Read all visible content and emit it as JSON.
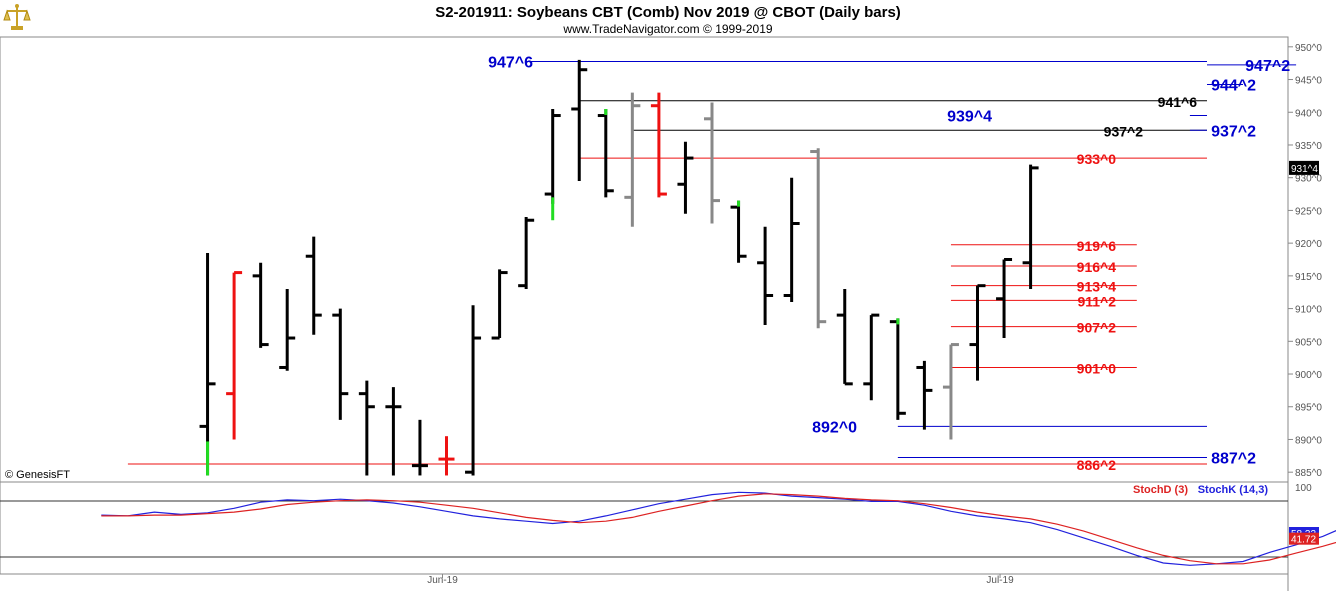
{
  "header": {
    "title": "S2-201911:  Soybeans CBT (Comb) Nov 2019 @ CBOT  (Daily bars)",
    "subtitle": "www.TradeNavigator.com © 1999-2019",
    "copyright": "© GenesisFT"
  },
  "colors": {
    "up": "#22dd22",
    "down": "#ee1111",
    "normal": "#000000",
    "gray": "#888888",
    "blue": "#0000cc",
    "red": "#dd0000",
    "stochK": "#2222dd",
    "stochD": "#dd2222"
  },
  "chart_data": [
    {
      "type": "ohlc",
      "title": "S2-201911:  Soybeans CBT (Comb) Nov 2019 @ CBOT  (Daily bars)",
      "yticks": [
        "950^0",
        "945^0",
        "940^0",
        "935^0",
        "930^0",
        "925^0",
        "920^0",
        "915^0",
        "910^0",
        "905^0",
        "900^0",
        "895^0",
        "890^0",
        "885^0"
      ],
      "ylim": [
        883.5,
        951.5
      ],
      "xticks": [
        {
          "label": "Jun-19",
          "x": 10
        },
        {
          "label": "Jul-19",
          "x": 31
        }
      ],
      "last_price_label": "931^4",
      "bars": [
        {
          "x": 1,
          "o": 892,
          "h": 918.5,
          "l": 884.5,
          "c": 898.5,
          "col": "black",
          "tick": "green"
        },
        {
          "x": 2,
          "o": 897,
          "h": 915.5,
          "l": 890,
          "c": 915.5,
          "col": "red"
        },
        {
          "x": 3,
          "o": 915,
          "h": 917,
          "l": 904,
          "c": 904.5,
          "col": "black"
        },
        {
          "x": 4,
          "o": 901,
          "h": 913,
          "l": 900.5,
          "c": 905.5,
          "col": "black"
        },
        {
          "x": 5,
          "o": 918,
          "h": 921,
          "l": 906,
          "c": 909,
          "col": "black"
        },
        {
          "x": 6,
          "o": 909,
          "h": 910,
          "l": 893,
          "c": 897,
          "col": "black"
        },
        {
          "x": 7,
          "o": 897,
          "h": 899,
          "l": 884.5,
          "c": 895,
          "col": "black"
        },
        {
          "x": 8,
          "o": 895,
          "h": 898,
          "l": 884.5,
          "c": 895,
          "col": "black"
        },
        {
          "x": 9,
          "o": 886,
          "h": 893,
          "l": 884.5,
          "c": 886,
          "col": "black"
        },
        {
          "x": 10,
          "o": 887,
          "h": 890.5,
          "l": 884.5,
          "c": 887,
          "col": "red"
        },
        {
          "x": 11,
          "o": 885,
          "h": 910.5,
          "l": 884.5,
          "c": 905.5,
          "col": "black"
        },
        {
          "x": 12,
          "o": 905.5,
          "h": 916,
          "l": 905.5,
          "c": 915.5,
          "col": "black"
        },
        {
          "x": 13,
          "o": 913.5,
          "h": 924,
          "l": 913,
          "c": 923.5,
          "col": "black"
        },
        {
          "x": 14,
          "o": 927.5,
          "h": 940.5,
          "l": 926,
          "c": 939.5,
          "col": "black",
          "tick": "green"
        },
        {
          "x": 15,
          "o": 940.5,
          "h": 948,
          "l": 929.5,
          "c": 946.5,
          "col": "black"
        },
        {
          "x": 16,
          "o": 939.5,
          "h": 940.5,
          "l": 927,
          "c": 928,
          "col": "black",
          "tick": "green"
        },
        {
          "x": 17,
          "o": 927,
          "h": 943,
          "l": 922.5,
          "c": 941,
          "col": "gray"
        },
        {
          "x": 18,
          "o": 941,
          "h": 943,
          "l": 927,
          "c": 927.5,
          "col": "red"
        },
        {
          "x": 19,
          "o": 929,
          "h": 935.5,
          "l": 924.5,
          "c": 933,
          "col": "black"
        },
        {
          "x": 20,
          "o": 939,
          "h": 941.5,
          "l": 923,
          "c": 926.5,
          "col": "gray"
        },
        {
          "x": 21,
          "o": 925.5,
          "h": 926.5,
          "l": 917,
          "c": 918,
          "col": "black",
          "tick": "green"
        },
        {
          "x": 22,
          "o": 917,
          "h": 922.5,
          "l": 907.5,
          "c": 912,
          "col": "black"
        },
        {
          "x": 23,
          "o": 912,
          "h": 930,
          "l": 911,
          "c": 923,
          "col": "black"
        },
        {
          "x": 24,
          "o": 934,
          "h": 934.5,
          "l": 907,
          "c": 908,
          "col": "gray"
        },
        {
          "x": 25,
          "o": 909,
          "h": 913,
          "l": 898.5,
          "c": 898.5,
          "col": "black"
        },
        {
          "x": 26,
          "o": 898.5,
          "h": 909,
          "l": 896,
          "c": 909,
          "col": "black"
        },
        {
          "x": 27,
          "o": 908,
          "h": 908.5,
          "l": 893,
          "c": 894,
          "col": "black",
          "tick": "green"
        },
        {
          "x": 28,
          "o": 901,
          "h": 902,
          "l": 891.5,
          "c": 897.5,
          "col": "black"
        },
        {
          "x": 29,
          "o": 898,
          "h": 904.5,
          "l": 890,
          "c": 904.5,
          "col": "gray"
        },
        {
          "x": 30,
          "o": 904.5,
          "h": 913.5,
          "l": 899,
          "c": 913.5,
          "col": "black"
        },
        {
          "x": 31,
          "o": 911.5,
          "h": 917.5,
          "l": 905.5,
          "c": 917.5,
          "col": "black"
        },
        {
          "x": 32,
          "o": 917,
          "h": 932,
          "l": 913,
          "c": 931.5,
          "col": "black"
        }
      ],
      "levels": [
        {
          "label": "947^6",
          "price": 947.75,
          "color": "blue",
          "x0": 13,
          "x1": 45
        },
        {
          "label": "947^2",
          "price": 947.25,
          "color": "blue",
          "x0": 42,
          "x1": 45
        },
        {
          "label": "944^2",
          "price": 944.25,
          "color": "blue",
          "x0": 40,
          "x1": 45
        },
        {
          "label": "941^6",
          "price": 941.75,
          "color": "black",
          "x0": 15,
          "x1": 41
        },
        {
          "label": "939^4",
          "price": 939.5,
          "color": "blue",
          "x0": 38,
          "x1": 45
        },
        {
          "label": "937^2",
          "price": 937.25,
          "color": "black",
          "x0": 17,
          "x1": 41
        },
        {
          "label": "937^2",
          "price": 937.25,
          "color": "blue",
          "x0": 38,
          "x1": 45
        },
        {
          "label": "933^0",
          "price": 933,
          "color": "red",
          "x0": 15,
          "x1": 41
        },
        {
          "label": "919^6",
          "price": 919.75,
          "color": "red",
          "x0": 29,
          "x1": 36
        },
        {
          "label": "916^4",
          "price": 916.5,
          "color": "red",
          "x0": 29,
          "x1": 36
        },
        {
          "label": "913^4",
          "price": 913.5,
          "color": "red",
          "x0": 29,
          "x1": 36
        },
        {
          "label": "911^2",
          "price": 911.25,
          "color": "red",
          "x0": 29,
          "x1": 36
        },
        {
          "label": "907^2",
          "price": 907.25,
          "color": "red",
          "x0": 29,
          "x1": 36
        },
        {
          "label": "901^0",
          "price": 901,
          "color": "red",
          "x0": 29,
          "x1": 36
        },
        {
          "label": "892^0",
          "price": 892,
          "color": "blue",
          "x0": 27,
          "x1": 45
        },
        {
          "label": "887^2",
          "price": 887.25,
          "color": "blue",
          "x0": 27,
          "x1": 45
        },
        {
          "label": "886^2",
          "price": 886.25,
          "color": "red",
          "x0": -2,
          "x1": 41
        }
      ]
    },
    {
      "type": "line",
      "title": "",
      "ylim": [
        0,
        100
      ],
      "yticks": [
        "100"
      ],
      "legend": [
        {
          "name": "StochD (3)",
          "color": "stochD"
        },
        {
          "name": "StochK (14,3)",
          "color": "stochK"
        }
      ],
      "series": [
        {
          "name": "StochK (14,3)",
          "color": "stochK",
          "last_label": "58.32",
          "points": [
            [
              -3,
              63
            ],
            [
              -2,
              62
            ],
            [
              -1,
              67
            ],
            [
              0,
              64
            ],
            [
              1,
              66
            ],
            [
              2,
              72
            ],
            [
              3,
              80
            ],
            [
              4,
              83
            ],
            [
              5,
              82
            ],
            [
              6,
              84
            ],
            [
              7,
              82
            ],
            [
              8,
              79
            ],
            [
              9,
              74
            ],
            [
              10,
              68
            ],
            [
              11,
              62
            ],
            [
              12,
              58
            ],
            [
              13,
              55
            ],
            [
              14,
              52
            ],
            [
              15,
              55
            ],
            [
              16,
              62
            ],
            [
              17,
              70
            ],
            [
              18,
              78
            ],
            [
              19,
              84
            ],
            [
              20,
              90
            ],
            [
              21,
              93
            ],
            [
              22,
              92
            ],
            [
              23,
              88
            ],
            [
              24,
              86
            ],
            [
              25,
              84
            ],
            [
              26,
              81
            ],
            [
              27,
              81
            ],
            [
              28,
              76
            ],
            [
              29,
              68
            ],
            [
              30,
              62
            ],
            [
              31,
              58
            ],
            [
              32,
              53
            ],
            [
              33,
              44
            ],
            [
              34,
              33
            ],
            [
              35,
              22
            ],
            [
              36,
              10
            ],
            [
              37,
              0
            ],
            [
              38,
              -3
            ],
            [
              39,
              -1
            ],
            [
              40,
              2
            ],
            [
              41,
              14
            ],
            [
              42,
              24
            ],
            [
              43,
              35
            ],
            [
              44,
              50
            ]
          ]
        },
        {
          "name": "StochD (3)",
          "color": "stochD",
          "last_label": "41.72",
          "points": [
            [
              -3,
              62
            ],
            [
              -2,
              62
            ],
            [
              -1,
              63
            ],
            [
              0,
              63
            ],
            [
              1,
              65
            ],
            [
              2,
              67
            ],
            [
              3,
              71
            ],
            [
              4,
              77
            ],
            [
              5,
              80
            ],
            [
              6,
              82
            ],
            [
              7,
              83
            ],
            [
              8,
              82
            ],
            [
              9,
              80
            ],
            [
              10,
              76
            ],
            [
              11,
              72
            ],
            [
              12,
              66
            ],
            [
              13,
              60
            ],
            [
              14,
              56
            ],
            [
              15,
              53
            ],
            [
              16,
              55
            ],
            [
              17,
              60
            ],
            [
              18,
              68
            ],
            [
              19,
              75
            ],
            [
              20,
              82
            ],
            [
              21,
              88
            ],
            [
              22,
              91
            ],
            [
              23,
              90
            ],
            [
              24,
              88
            ],
            [
              25,
              85
            ],
            [
              26,
              83
            ],
            [
              27,
              82
            ],
            [
              28,
              78
            ],
            [
              29,
              73
            ],
            [
              30,
              67
            ],
            [
              31,
              62
            ],
            [
              32,
              58
            ],
            [
              33,
              51
            ],
            [
              34,
              42
            ],
            [
              35,
              31
            ],
            [
              36,
              20
            ],
            [
              37,
              10
            ],
            [
              38,
              3
            ],
            [
              39,
              -1
            ],
            [
              40,
              -1
            ],
            [
              41,
              4
            ],
            [
              42,
              13
            ],
            [
              43,
              22
            ],
            [
              44,
              32
            ]
          ]
        }
      ]
    }
  ]
}
